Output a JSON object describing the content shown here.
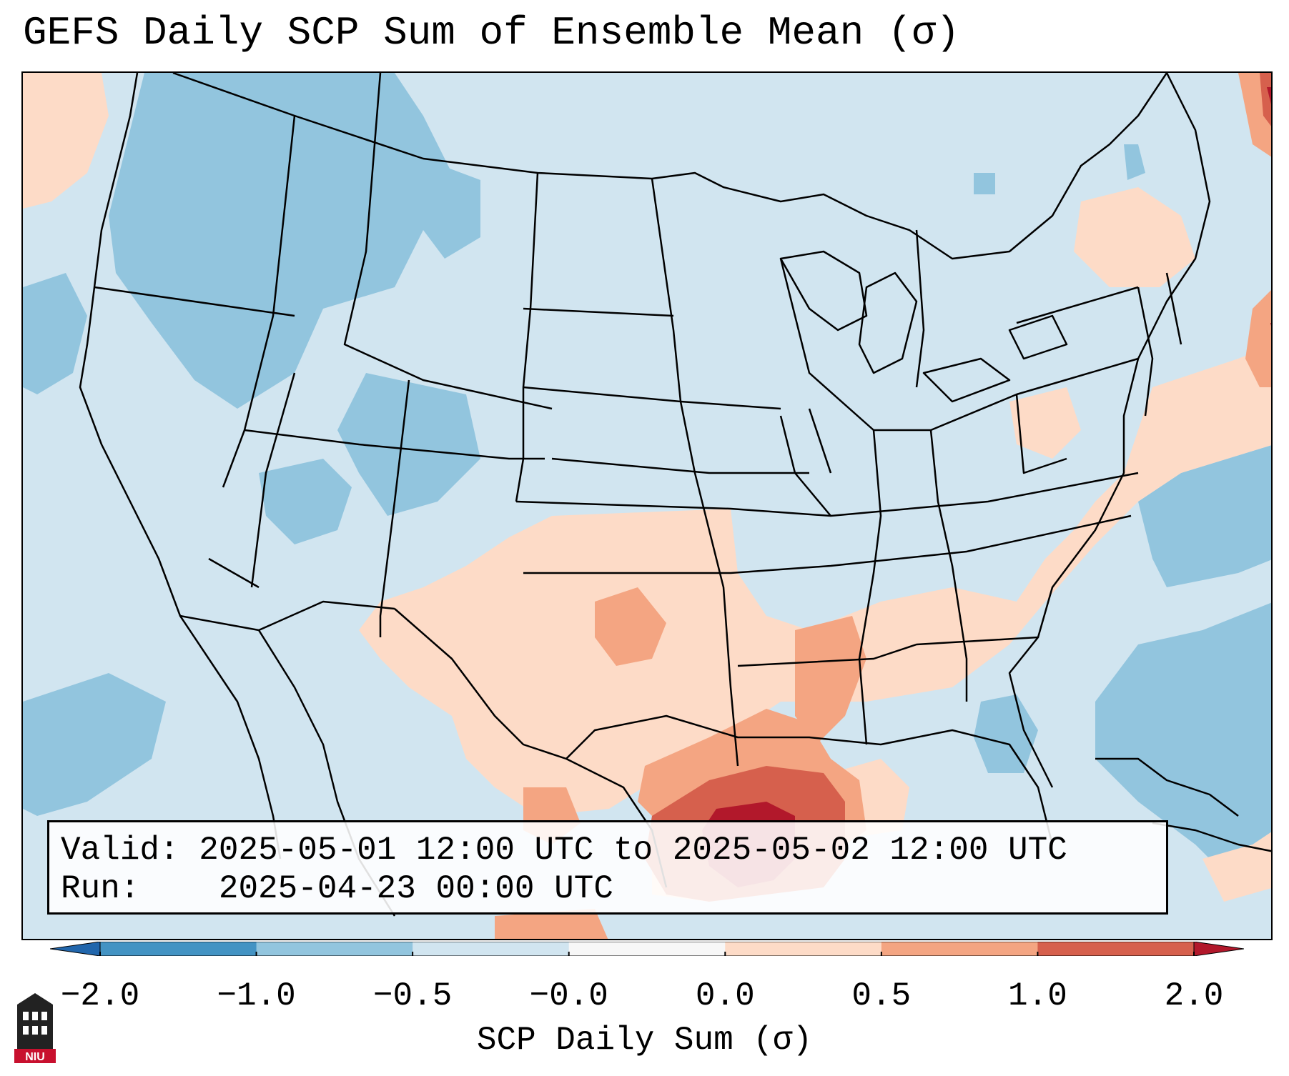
{
  "title": "GEFS Daily SCP Sum of Ensemble Mean (σ)",
  "valid_box": {
    "valid_label": "Valid:",
    "valid_value": "2025-05-01 12:00 UTC to 2025-05-02 12:00 UTC",
    "run_label": "Run:",
    "run_value": "2025-04-23 00:00 UTC"
  },
  "colorbar": {
    "label": "SCP Daily Sum (σ)",
    "ticks": [
      "−2.0",
      "−1.0",
      "−0.5",
      "−0.0",
      "0.0",
      "0.5",
      "1.0",
      "2.0"
    ],
    "bins": [
      {
        "color": "#4393c3"
      },
      {
        "color": "#92c5de"
      },
      {
        "color": "#d1e5f0"
      },
      {
        "color": "#f7f7f7"
      },
      {
        "color": "#fddbc7"
      },
      {
        "color": "#f4a582"
      },
      {
        "color": "#d6604d"
      }
    ],
    "under_color": "#2166ac",
    "over_color": "#b2182b"
  },
  "logo": {
    "name": "NIU",
    "text": "NIU"
  },
  "map": {
    "projection": "Lambert conformal",
    "region": "Contiguous United States"
  }
}
